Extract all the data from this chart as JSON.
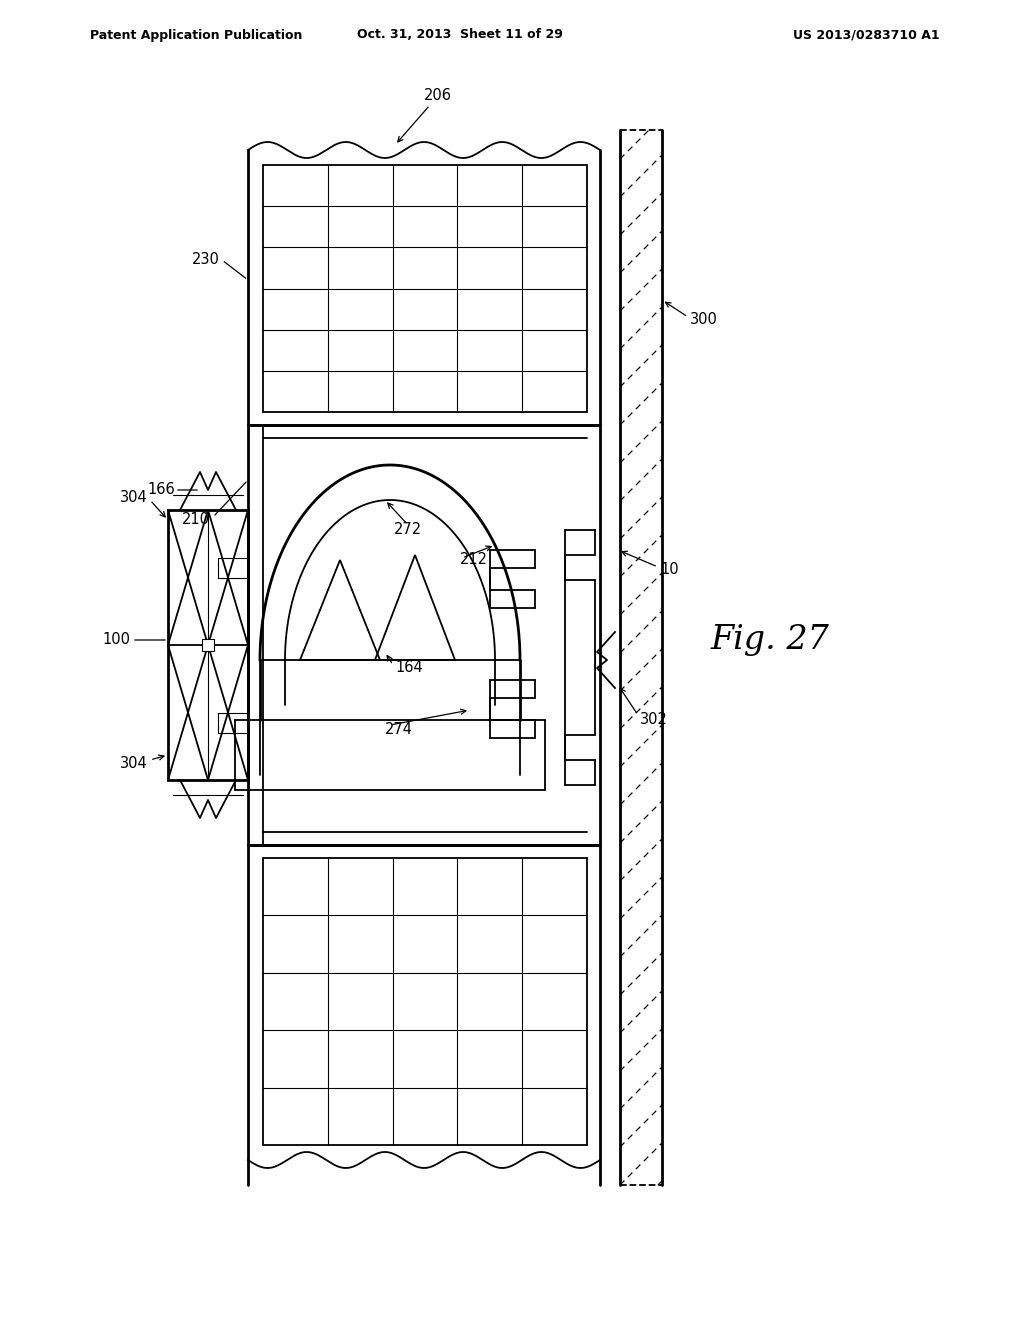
{
  "title_left": "Patent Application Publication",
  "title_mid": "Oct. 31, 2013  Sheet 11 of 29",
  "title_right": "US 2013/0283710 A1",
  "fig_label": "Fig. 27",
  "bg_color": "#ffffff",
  "line_color": "#000000"
}
